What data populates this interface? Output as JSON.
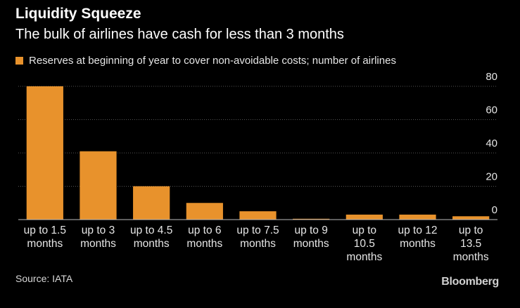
{
  "title": "Liquidity Squeeze",
  "subtitle": "The bulk of airlines have cash for less than 3 months",
  "legend_label": "Reserves at beginning of year to cover non-avoidable costs; number of airlines",
  "source": "Source: IATA",
  "brand": "Bloomberg",
  "colors": {
    "bar": "#E8922C",
    "background": "#000000",
    "grid": "#555555",
    "axis": "#bbbbbb"
  },
  "chart_data": {
    "type": "bar",
    "categories": [
      [
        "up to 1.5",
        "months"
      ],
      [
        "up to 3",
        "months"
      ],
      [
        "up to 4.5",
        "months"
      ],
      [
        "up to 6",
        "months"
      ],
      [
        "up to 7.5",
        "months"
      ],
      [
        "up to 9",
        "months"
      ],
      [
        "up to",
        "10.5",
        "months"
      ],
      [
        "up to 12",
        "months"
      ],
      [
        "up to",
        "13.5",
        "months"
      ]
    ],
    "series": [
      {
        "name": "Reserves at beginning of year to cover non-avoidable costs; number of airlines",
        "values": [
          80,
          41,
          20,
          10,
          5,
          0.5,
          3,
          3,
          2
        ]
      }
    ],
    "ylim": [
      0,
      80
    ],
    "yticks": [
      0,
      20,
      40,
      60,
      80
    ],
    "y_axis_side": "right",
    "grid": true,
    "legend_position": "top-left"
  }
}
